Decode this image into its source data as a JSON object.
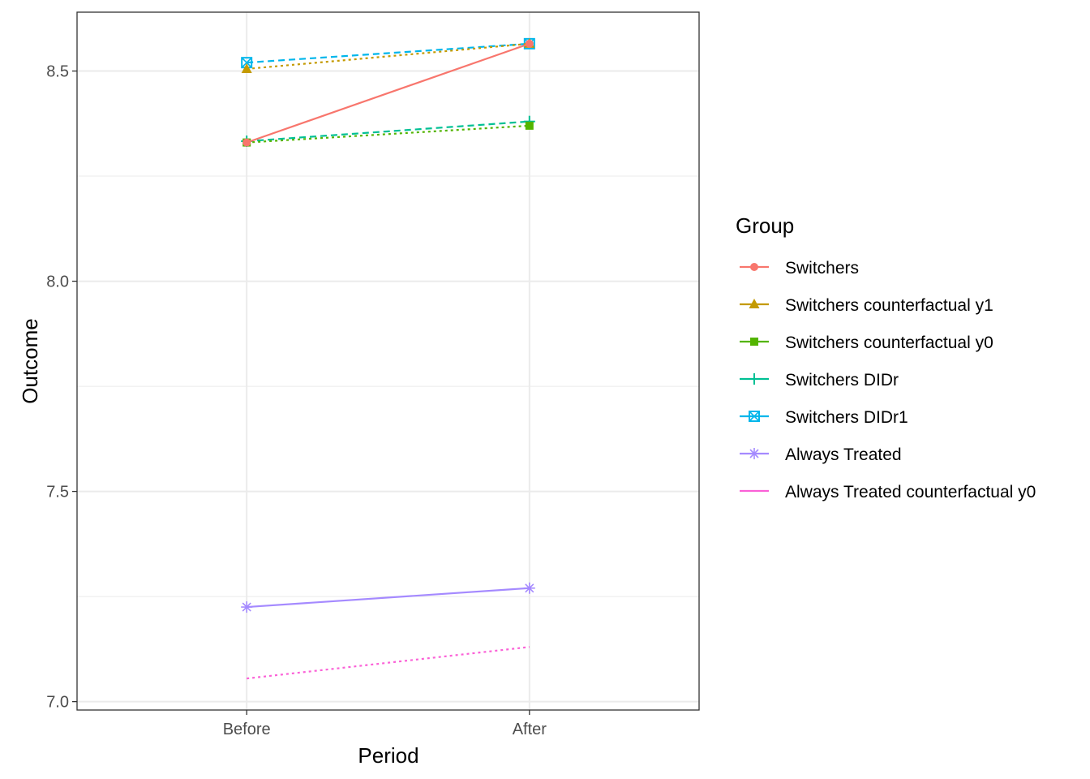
{
  "chart_data": {
    "type": "line",
    "title": "",
    "xlabel": "Period",
    "ylabel": "Outcome",
    "categories": [
      "Before",
      "After"
    ],
    "ylim": [
      6.98,
      8.64
    ],
    "yticks": [
      {
        "value": 7.0,
        "label": "7.0"
      },
      {
        "value": 7.5,
        "label": "7.5"
      },
      {
        "value": 8.0,
        "label": "8.0"
      },
      {
        "value": 8.5,
        "label": "8.5"
      }
    ],
    "grid": true,
    "legend": {
      "title": "Group",
      "position": "right"
    },
    "series": [
      {
        "name": "Switchers",
        "values": [
          8.33,
          8.565
        ],
        "color": "#F8766D",
        "linetype": "solid",
        "marker": "circle"
      },
      {
        "name": "Switchers counterfactual y1",
        "values": [
          8.505,
          8.565
        ],
        "color": "#C49A00",
        "linetype": "dotted",
        "marker": "triangle"
      },
      {
        "name": "Switchers counterfactual y0",
        "values": [
          8.33,
          8.37
        ],
        "color": "#53B400",
        "linetype": "dotted",
        "marker": "square"
      },
      {
        "name": "Switchers DIDr",
        "values": [
          8.333,
          8.38
        ],
        "color": "#00C094",
        "linetype": "dashed",
        "marker": "plus"
      },
      {
        "name": "Switchers DIDr1",
        "values": [
          8.52,
          8.565
        ],
        "color": "#00B6EB",
        "linetype": "dashed",
        "marker": "square-x"
      },
      {
        "name": "Always Treated",
        "values": [
          7.225,
          7.27
        ],
        "color": "#A58AFF",
        "linetype": "solid",
        "marker": "asterisk"
      },
      {
        "name": "Always Treated counterfactual y0",
        "values": [
          7.055,
          7.13
        ],
        "color": "#FB61D7",
        "linetype": "dotted",
        "marker": "none"
      }
    ]
  }
}
